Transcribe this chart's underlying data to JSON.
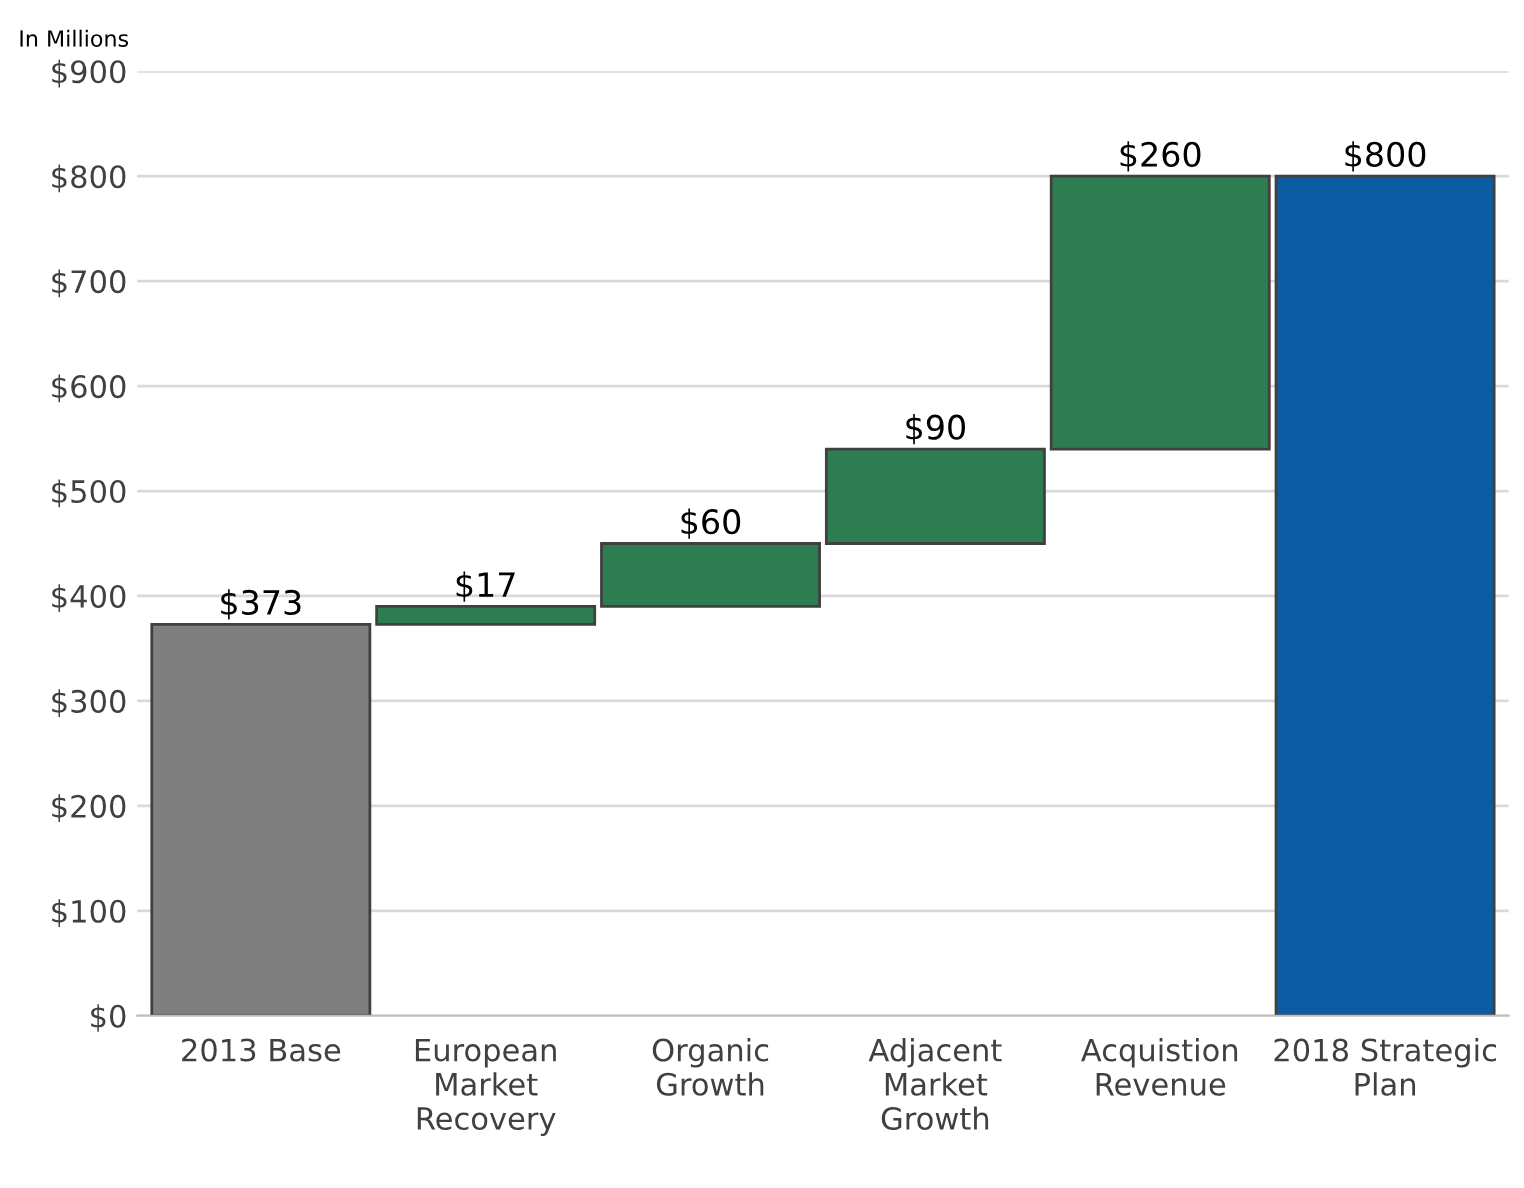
{
  "chart_data": {
    "type": "bar",
    "categories": [
      "2013 Base",
      "European\nMarket\nRecovery",
      "Organic\nGrowth",
      "Adjacent\nMarket\nGrowth",
      "Acquistion\nRevenue",
      "2018 Strategic\nPlan"
    ],
    "values": [
      373,
      17,
      60,
      90,
      260,
      800
    ],
    "base": [
      0,
      373,
      390,
      450,
      540,
      0
    ],
    "colors": [
      "#7f7f7f",
      "#2e7d52",
      "#2e7d52",
      "#2e7d52",
      "#2e7d52",
      "#0b5ca3"
    ],
    "value_labels": [
      "$373",
      "$17",
      "$60",
      "$90",
      "$260",
      "$800"
    ],
    "ylim": [
      0,
      900
    ],
    "yticks": [
      {
        "value": 0,
        "label": "$0"
      },
      {
        "value": 100,
        "label": "$100"
      },
      {
        "value": 200,
        "label": "$200"
      },
      {
        "value": 300,
        "label": "$300"
      },
      {
        "value": 400,
        "label": "$400"
      },
      {
        "value": 500,
        "label": "$500"
      },
      {
        "value": 600,
        "label": "$600"
      },
      {
        "value": 700,
        "label": "$700"
      },
      {
        "value": 800,
        "label": "$800"
      },
      {
        "value": 900,
        "label": "$900"
      }
    ],
    "grid": "y",
    "annotations": [
      "In Millions"
    ]
  }
}
